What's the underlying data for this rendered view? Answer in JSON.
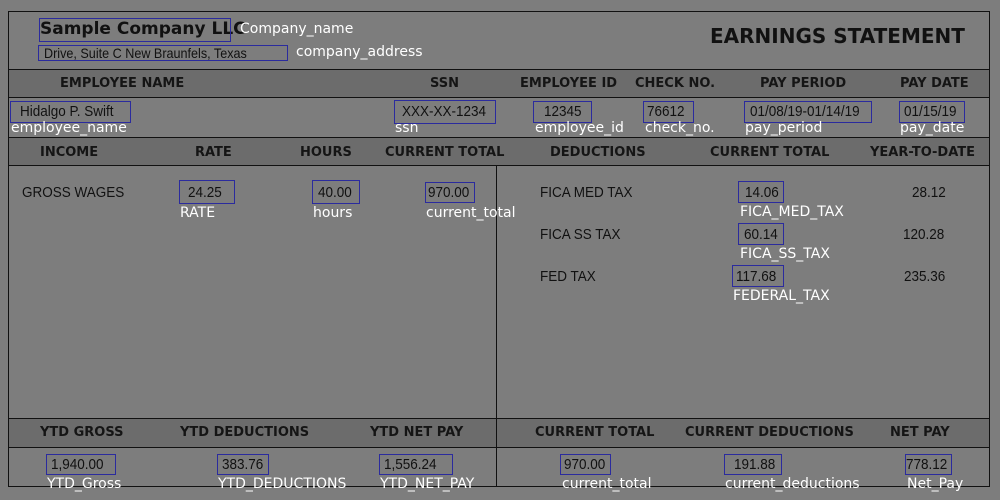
{
  "company": {
    "name": "Sample Company LLC",
    "address": "Drive, Suite C New Braunfels, Texas",
    "title": "EARNINGS STATEMENT"
  },
  "headers1": {
    "employee_name": "EMPLOYEE NAME",
    "ssn": "SSN",
    "employee_id": "EMPLOYEE ID",
    "check_no": "CHECK NO.",
    "pay_period": "PAY PERIOD",
    "pay_date": "PAY DATE"
  },
  "employee": {
    "name": "Hidalgo P. Swift",
    "ssn": "XXX-XX-1234",
    "employee_id": "12345",
    "check_no": "76612",
    "pay_period": "01/08/19-01/14/19",
    "pay_date": "01/15/19"
  },
  "headers2": {
    "income": "INCOME",
    "rate": "RATE",
    "hours": "HOURS",
    "current_total": "CURRENT TOTAL",
    "deductions": "DEDUCTIONS",
    "ded_current_total": "CURRENT TOTAL",
    "ytd": "YEAR-TO-DATE"
  },
  "income": {
    "label": "GROSS WAGES",
    "rate": "24.25",
    "hours": "40.00",
    "current_total": "970.00"
  },
  "deductions": [
    {
      "label": "FICA MED TAX",
      "current": "14.06",
      "ytd": "28.12"
    },
    {
      "label": "FICA SS TAX",
      "current": "60.14",
      "ytd": "120.28"
    },
    {
      "label": "FED TAX",
      "current": "117.68",
      "ytd": "235.36"
    }
  ],
  "headers3": {
    "ytd_gross": "YTD GROSS",
    "ytd_deductions": "YTD DEDUCTIONS",
    "ytd_net_pay": "YTD NET PAY",
    "current_total": "CURRENT TOTAL",
    "current_deductions": "CURRENT DEDUCTIONS",
    "net_pay": "NET PAY"
  },
  "totals": {
    "ytd_gross": "1,940.00",
    "ytd_deductions": "383.76",
    "ytd_net_pay": "1,556.24",
    "current_total": "970.00",
    "current_deductions": "191.88",
    "net_pay": "778.12"
  },
  "annotations": {
    "company_name": "Company_name",
    "company_address": "company_address",
    "employee_name": "employee_name",
    "ssn": "ssn",
    "employee_id": "employee_id",
    "check_no": "check_no.",
    "pay_period": "pay_period",
    "pay_date": "pay_date",
    "rate": "RATE",
    "hours": "hours",
    "current_total": "current_total",
    "fica_med": "FICA_MED_TAX",
    "fica_ss": "FICA_SS_TAX",
    "federal": "FEDERAL_TAX",
    "ytd_gross": "YTD_Gross",
    "ytd_deductions": "YTD_DEDUCTIONS",
    "ytd_net_pay": "YTD_NET_PAY",
    "bottom_current_total": "current_total",
    "current_deductions": "current_deductions",
    "net_pay": "Net_Pay"
  },
  "colors": {
    "background": "#7d7d7d",
    "header_band": "#6c6c6c",
    "annotation_box": "#2b2b9e",
    "annotation_label": "#ffffff"
  }
}
